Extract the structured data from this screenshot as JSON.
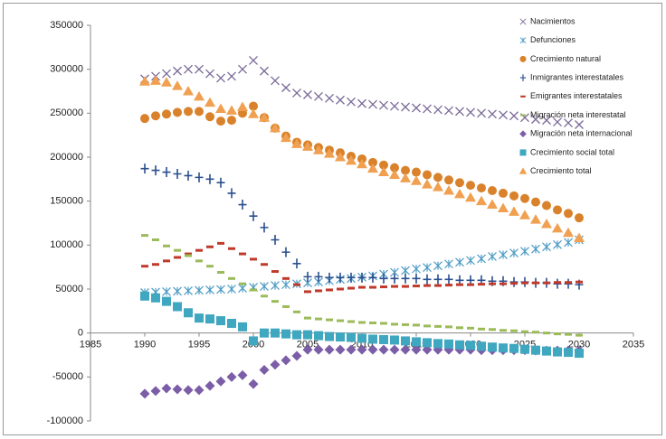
{
  "chart_data": {
    "type": "scatter",
    "x": [
      1990,
      1991,
      1992,
      1993,
      1994,
      1995,
      1996,
      1997,
      1998,
      1999,
      2000,
      2001,
      2002,
      2003,
      2004,
      2005,
      2006,
      2007,
      2008,
      2009,
      2010,
      2011,
      2012,
      2013,
      2014,
      2015,
      2016,
      2017,
      2018,
      2019,
      2020,
      2021,
      2022,
      2023,
      2024,
      2025,
      2026,
      2027,
      2028,
      2029,
      2030
    ],
    "xlim": [
      1985,
      2035
    ],
    "xticks": [
      1985,
      1990,
      1995,
      2000,
      2005,
      2010,
      2015,
      2020,
      2025,
      2030,
      2035
    ],
    "ylim": [
      -100000,
      350000
    ],
    "yticks": [
      -100000,
      -50000,
      0,
      50000,
      100000,
      150000,
      200000,
      250000,
      300000,
      350000
    ],
    "grid": false,
    "legend": "upper-right",
    "series": [
      {
        "name": "Nacimientos",
        "color": "#7a6a98",
        "marker": "x",
        "values": [
          289000,
          292000,
          295000,
          298000,
          300000,
          300000,
          295000,
          290000,
          292000,
          300000,
          310000,
          298000,
          287000,
          279000,
          273000,
          271000,
          269000,
          267000,
          265000,
          263000,
          261000,
          260000,
          259000,
          258000,
          257000,
          256000,
          255000,
          254000,
          253000,
          252000,
          251000,
          250000,
          249000,
          248000,
          247000,
          245000,
          243000,
          242000,
          240000,
          239000,
          237000
        ]
      },
      {
        "name": "Defunciones",
        "color": "#4f9cc4",
        "marker": "star",
        "values": [
          46000,
          46500,
          47000,
          47500,
          48000,
          48500,
          49000,
          49500,
          50000,
          51000,
          52000,
          53000,
          54000,
          55000,
          56000,
          57000,
          58000,
          59500,
          61000,
          62000,
          63500,
          65000,
          67000,
          69000,
          71000,
          73000,
          74500,
          76500,
          78500,
          80500,
          82500,
          84500,
          87000,
          89000,
          91000,
          93000,
          95500,
          98000,
          100500,
          103000,
          106000
        ]
      },
      {
        "name": "Crecimiento natural",
        "color": "#d9822b",
        "marker": "circle",
        "values": [
          244000,
          247000,
          249000,
          251000,
          252000,
          252000,
          246000,
          241000,
          242000,
          250000,
          258000,
          245000,
          233000,
          224000,
          217000,
          214000,
          211000,
          208000,
          205000,
          201000,
          198000,
          194000,
          191000,
          188000,
          185000,
          183000,
          180000,
          177000,
          174000,
          171000,
          168000,
          165000,
          162000,
          159000,
          156000,
          153000,
          149000,
          145000,
          140000,
          136000,
          131000
        ]
      },
      {
        "name": "Inmigrantes interestatales",
        "color": "#2a4f8f",
        "marker": "plus",
        "values": [
          187000,
          185000,
          183000,
          181000,
          179000,
          177000,
          175000,
          171000,
          159000,
          146000,
          133000,
          120000,
          106000,
          92000,
          79000,
          64000,
          64000,
          63000,
          63000,
          63000,
          63000,
          63000,
          62000,
          62000,
          62000,
          62000,
          61000,
          61000,
          61000,
          60000,
          60000,
          60000,
          59000,
          59000,
          58000,
          58000,
          57000,
          57000,
          56000,
          56000,
          55000
        ]
      },
      {
        "name": "Emigrantes interestatales",
        "color": "#c0392b",
        "marker": "dash",
        "values": [
          76000,
          78000,
          82000,
          86000,
          90000,
          94000,
          98000,
          102000,
          96000,
          90000,
          84000,
          78000,
          70000,
          62000,
          55000,
          47000,
          48000,
          49000,
          50000,
          51000,
          52000,
          52000,
          52500,
          53000,
          53000,
          53500,
          54000,
          54000,
          54500,
          55000,
          55000,
          55500,
          56000,
          56000,
          56500,
          57000,
          57000,
          57000,
          57500,
          57500,
          58000
        ]
      },
      {
        "name": "Migración neta interestatal",
        "color": "#9bbb59",
        "marker": "dash",
        "values": [
          111000,
          106000,
          99000,
          94000,
          88000,
          82000,
          76000,
          69000,
          62000,
          56000,
          49000,
          42000,
          36000,
          30000,
          24000,
          17000,
          16000,
          15000,
          14000,
          13000,
          12000,
          11500,
          11000,
          10000,
          9500,
          9000,
          8000,
          7500,
          7000,
          6000,
          5500,
          4500,
          4000,
          3000,
          2500,
          1500,
          1000,
          0,
          -1000,
          -1500,
          -2500
        ]
      },
      {
        "name": "Migración neta internacional",
        "color": "#7b5ea7",
        "marker": "diamond",
        "values": [
          -69000,
          -66000,
          -63000,
          -64000,
          -65000,
          -65000,
          -60000,
          -55000,
          -50000,
          -48000,
          -58000,
          -42000,
          -36000,
          -31000,
          -26000,
          -19000,
          -19000,
          -19000,
          -19000,
          -19000,
          -19000,
          -19000,
          -19000,
          -19000,
          -19000,
          -19000,
          -19000,
          -19000,
          -19000,
          -19000,
          -19000,
          -19500,
          -19500,
          -19500,
          -19500,
          -19500,
          -20000,
          -20000,
          -20000,
          -20000,
          -20000
        ]
      },
      {
        "name": "Crecimiento social total",
        "color": "#3fa7c0",
        "marker": "square",
        "values": [
          42000,
          40000,
          36000,
          30000,
          23000,
          17000,
          16000,
          14000,
          11000,
          7000,
          -9000,
          0,
          0,
          -1000,
          -2000,
          -2000,
          -3000,
          -4000,
          -4500,
          -5000,
          -6000,
          -7000,
          -7500,
          -8000,
          -9000,
          -10000,
          -11000,
          -12000,
          -12500,
          -13500,
          -14000,
          -15000,
          -16000,
          -17000,
          -17500,
          -18500,
          -19500,
          -20500,
          -21500,
          -22000,
          -23000
        ]
      },
      {
        "name": "Crecimiento total",
        "color": "#f0a050",
        "marker": "triangle",
        "values": [
          286000,
          287000,
          285000,
          281000,
          275000,
          269000,
          262000,
          255000,
          253000,
          257000,
          249000,
          245000,
          233000,
          222000,
          215000,
          212000,
          208000,
          204000,
          200000,
          196000,
          192000,
          187000,
          183000,
          180000,
          176000,
          173000,
          169000,
          166000,
          162000,
          158000,
          154000,
          150000,
          146000,
          142000,
          138000,
          134000,
          129000,
          124000,
          119000,
          114000,
          108000
        ]
      }
    ]
  }
}
